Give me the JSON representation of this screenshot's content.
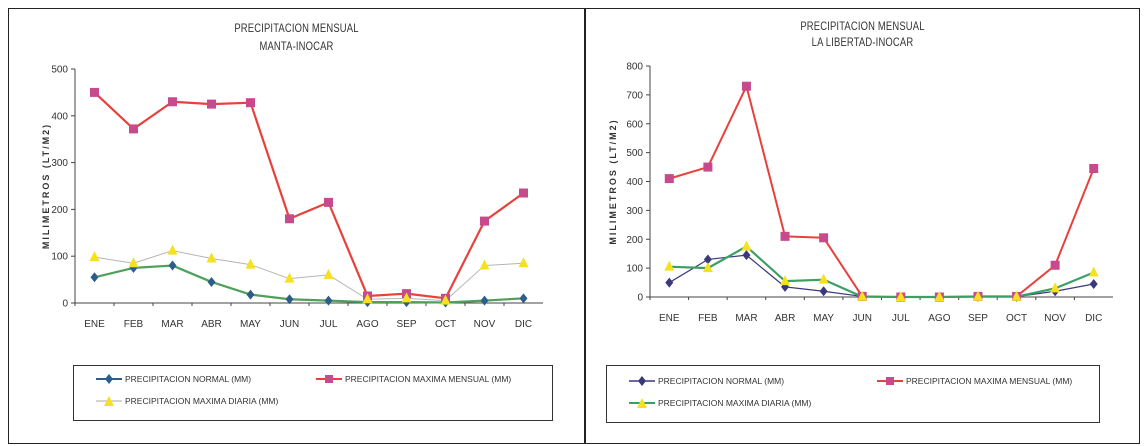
{
  "chart_data": [
    {
      "type": "line",
      "title": "PRECIPITACION MENSUAL",
      "subtitle": "MANTA-INOCAR",
      "ylabel": "MILIMETROS (LT/M2)",
      "xlabel": "",
      "ylim": [
        0,
        500
      ],
      "yticks": [
        0,
        100,
        200,
        300,
        400,
        500
      ],
      "grid": false,
      "legend_position": "bottom",
      "categories": [
        "ENE",
        "FEB",
        "MAR",
        "ABR",
        "MAY",
        "JUN",
        "JUL",
        "AGO",
        "SEP",
        "OCT",
        "NOV",
        "DIC"
      ],
      "series": [
        {
          "name": "PRECIPITACION NORMAL (MM)",
          "color": "#2d5d8a",
          "marker": "diamond",
          "values": [
            55,
            75,
            80,
            45,
            18,
            8,
            5,
            2,
            2,
            1,
            5,
            10
          ]
        },
        {
          "name": "PRECIPITACION MAXIMA MENSUAL (MM)",
          "color": "#e8413c",
          "marker": "square",
          "values": [
            450,
            372,
            430,
            425,
            428,
            180,
            215,
            15,
            20,
            10,
            175,
            235
          ]
        },
        {
          "name": "PRECIPITACION MAXIMA DIARIA (MM)",
          "color": "#f5e11e",
          "marker": "triangle",
          "values": [
            98,
            85,
            112,
            95,
            82,
            52,
            60,
            8,
            10,
            5,
            80,
            85
          ]
        }
      ]
    },
    {
      "type": "line",
      "title": "PRECIPITACION MENSUAL",
      "subtitle": "LA LIBERTAD-INOCAR",
      "ylabel": "MILIMETROS (LT/M2)",
      "xlabel": "",
      "ylim": [
        0,
        800
      ],
      "yticks": [
        0,
        100,
        200,
        300,
        400,
        500,
        600,
        700,
        800
      ],
      "grid": false,
      "legend_position": "bottom",
      "categories": [
        "ENE",
        "FEB",
        "MAR",
        "ABR",
        "MAY",
        "JUN",
        "JUL",
        "AGO",
        "SEP",
        "OCT",
        "NOV",
        "DIC"
      ],
      "series": [
        {
          "name": "PRECIPITACION NORMAL (MM)",
          "color": "#3a3a7a",
          "marker": "diamond",
          "values": [
            50,
            130,
            145,
            35,
            20,
            2,
            1,
            1,
            1,
            1,
            20,
            45
          ]
        },
        {
          "name": "PRECIPITACION MAXIMA MENSUAL (MM)",
          "color": "#e8413c",
          "marker": "square",
          "values": [
            410,
            450,
            730,
            210,
            205,
            2,
            0,
            0,
            2,
            2,
            110,
            445
          ]
        },
        {
          "name": "PRECIPITACION MAXIMA DIARIA (MM)",
          "color": "#f5e11e",
          "marker": "triangle",
          "values": [
            105,
            100,
            175,
            55,
            60,
            1,
            0,
            0,
            1,
            1,
            30,
            85
          ]
        }
      ]
    }
  ]
}
